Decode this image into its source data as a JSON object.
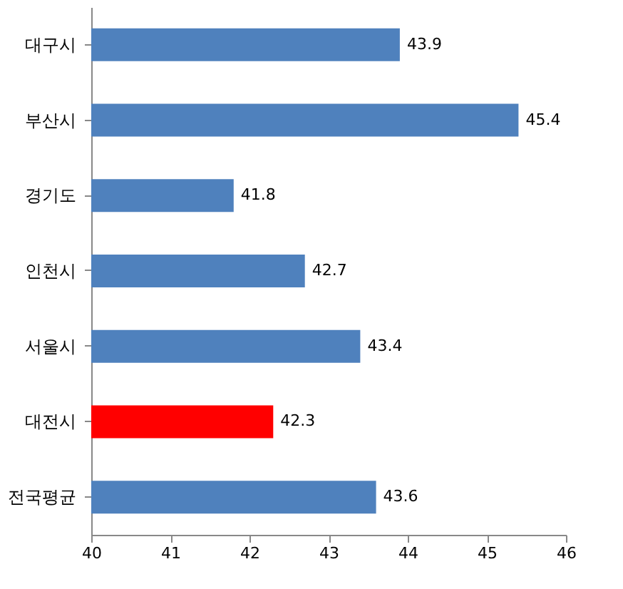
{
  "chart_data": {
    "type": "bar",
    "orientation": "horizontal",
    "categories": [
      "대구시",
      "부산시",
      "경기도",
      "인천시",
      "서울시",
      "대전시",
      "전국평균"
    ],
    "values": [
      43.9,
      45.4,
      41.8,
      42.7,
      43.4,
      42.3,
      43.6
    ],
    "colors": [
      "#4f81bd",
      "#4f81bd",
      "#4f81bd",
      "#4f81bd",
      "#4f81bd",
      "#ff0000",
      "#4f81bd"
    ],
    "xlim": [
      40,
      46
    ],
    "xticks": [
      40,
      41,
      42,
      43,
      44,
      45,
      46
    ],
    "data_labels": true,
    "grid": false
  }
}
